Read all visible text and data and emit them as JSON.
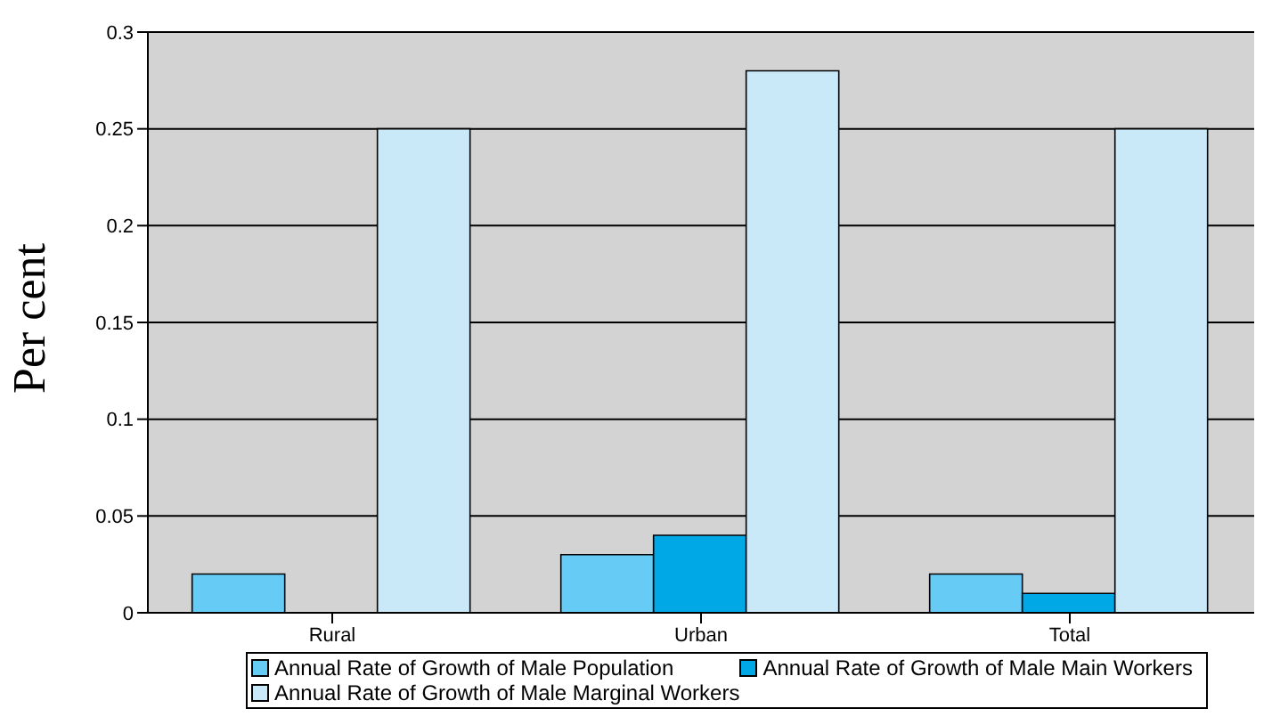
{
  "chart_data": {
    "type": "bar",
    "ylabel": "Per cent",
    "categories": [
      "Rural",
      "Urban",
      "Total"
    ],
    "series": [
      {
        "name": "Annual Rate of Growth of Male Population",
        "color": "#66ccf5",
        "values": [
          0.02,
          0.03,
          0.02
        ]
      },
      {
        "name": "Annual Rate of Growth of Male Main Workers",
        "color": "#00a9e6",
        "values": [
          0,
          0.04,
          0.01
        ]
      },
      {
        "name": "Annual Rate of Growth of Male Marginal Workers",
        "color": "#c9e9f9",
        "values": [
          0.25,
          0.28,
          0.25
        ]
      }
    ],
    "ylim": [
      0,
      0.3
    ],
    "yticks": [
      0,
      0.05,
      0.1,
      0.15,
      0.2,
      0.25,
      0.3
    ],
    "grid": "y",
    "legend": "bottom"
  }
}
